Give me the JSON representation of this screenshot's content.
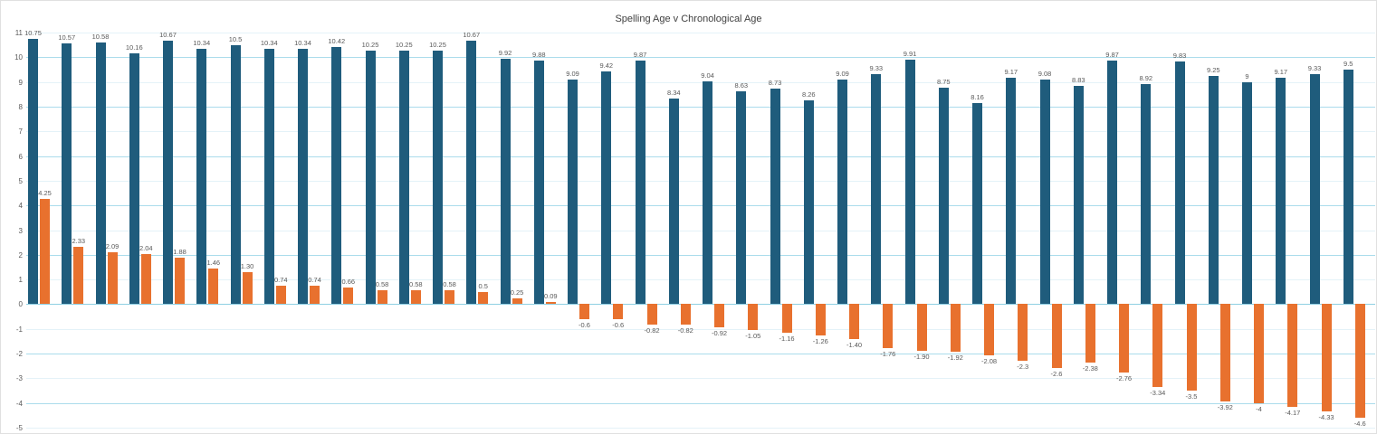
{
  "chart_data": {
    "type": "bar",
    "title": "Spelling Age v Chronological Age",
    "xlabel": "",
    "ylabel": "",
    "ylim": [
      -5,
      11
    ],
    "y_ticks": [
      11,
      10,
      9,
      8,
      7,
      6,
      5,
      4,
      3,
      2,
      1,
      0,
      -1,
      -2,
      -3,
      -4,
      -5
    ],
    "x_tick_labels": "none",
    "legend_position": "none",
    "grid": "horizontal gridlines, light cyan",
    "colors": {
      "blue_series": "#1F5C7C",
      "orange_series": "#E8712E",
      "gridline_major": "#ABDCEC",
      "gridline_minor": "#E4F2F8",
      "zero_line": "#8ECFE3",
      "axis_text": "#595959",
      "title_text": "#404040",
      "background": "#FFFFFF"
    },
    "series": [
      {
        "id": "blue",
        "values": [
          "10.75",
          "10.57",
          "10.58",
          "10.16",
          "10.67",
          "10.34",
          "10.5",
          "10.34",
          "10.34",
          "10.42",
          "10.25",
          "10.25",
          "10.25",
          "10.67",
          "9.92",
          "9.88",
          "9.09",
          "9.42",
          "9.87",
          "8.34",
          "9.04",
          "8.63",
          "8.73",
          "8.26",
          "9.09",
          "9.33",
          "9.91",
          "8.75",
          "8.16",
          "9.17",
          "9.08",
          "8.83",
          "9.87",
          "8.92",
          "9.83",
          "9.25",
          "9",
          "9.17",
          "9.33",
          "9.5"
        ]
      },
      {
        "id": "orange",
        "values": [
          "4.25",
          "2.33",
          "2.09",
          "2.04",
          "1.88",
          "1.46",
          "1.30",
          "0.74",
          "0.74",
          "0.66",
          "0.58",
          "0.58",
          "0.58",
          "0.5",
          "0.25",
          "0.09",
          "-0.6",
          "-0.6",
          "-0.82",
          "-0.82",
          "-0.92",
          "-1.05",
          "-1.16",
          "-1.26",
          "-1.40",
          "-1.76",
          "-1.90",
          "-1.92",
          "-2.08",
          "-2.3",
          "-2.6",
          "-2.38",
          "-2.76",
          "-3.34",
          "-3.5",
          "-3.92",
          "-4",
          "-4.17",
          "-4.33",
          "-4.6"
        ]
      }
    ]
  }
}
